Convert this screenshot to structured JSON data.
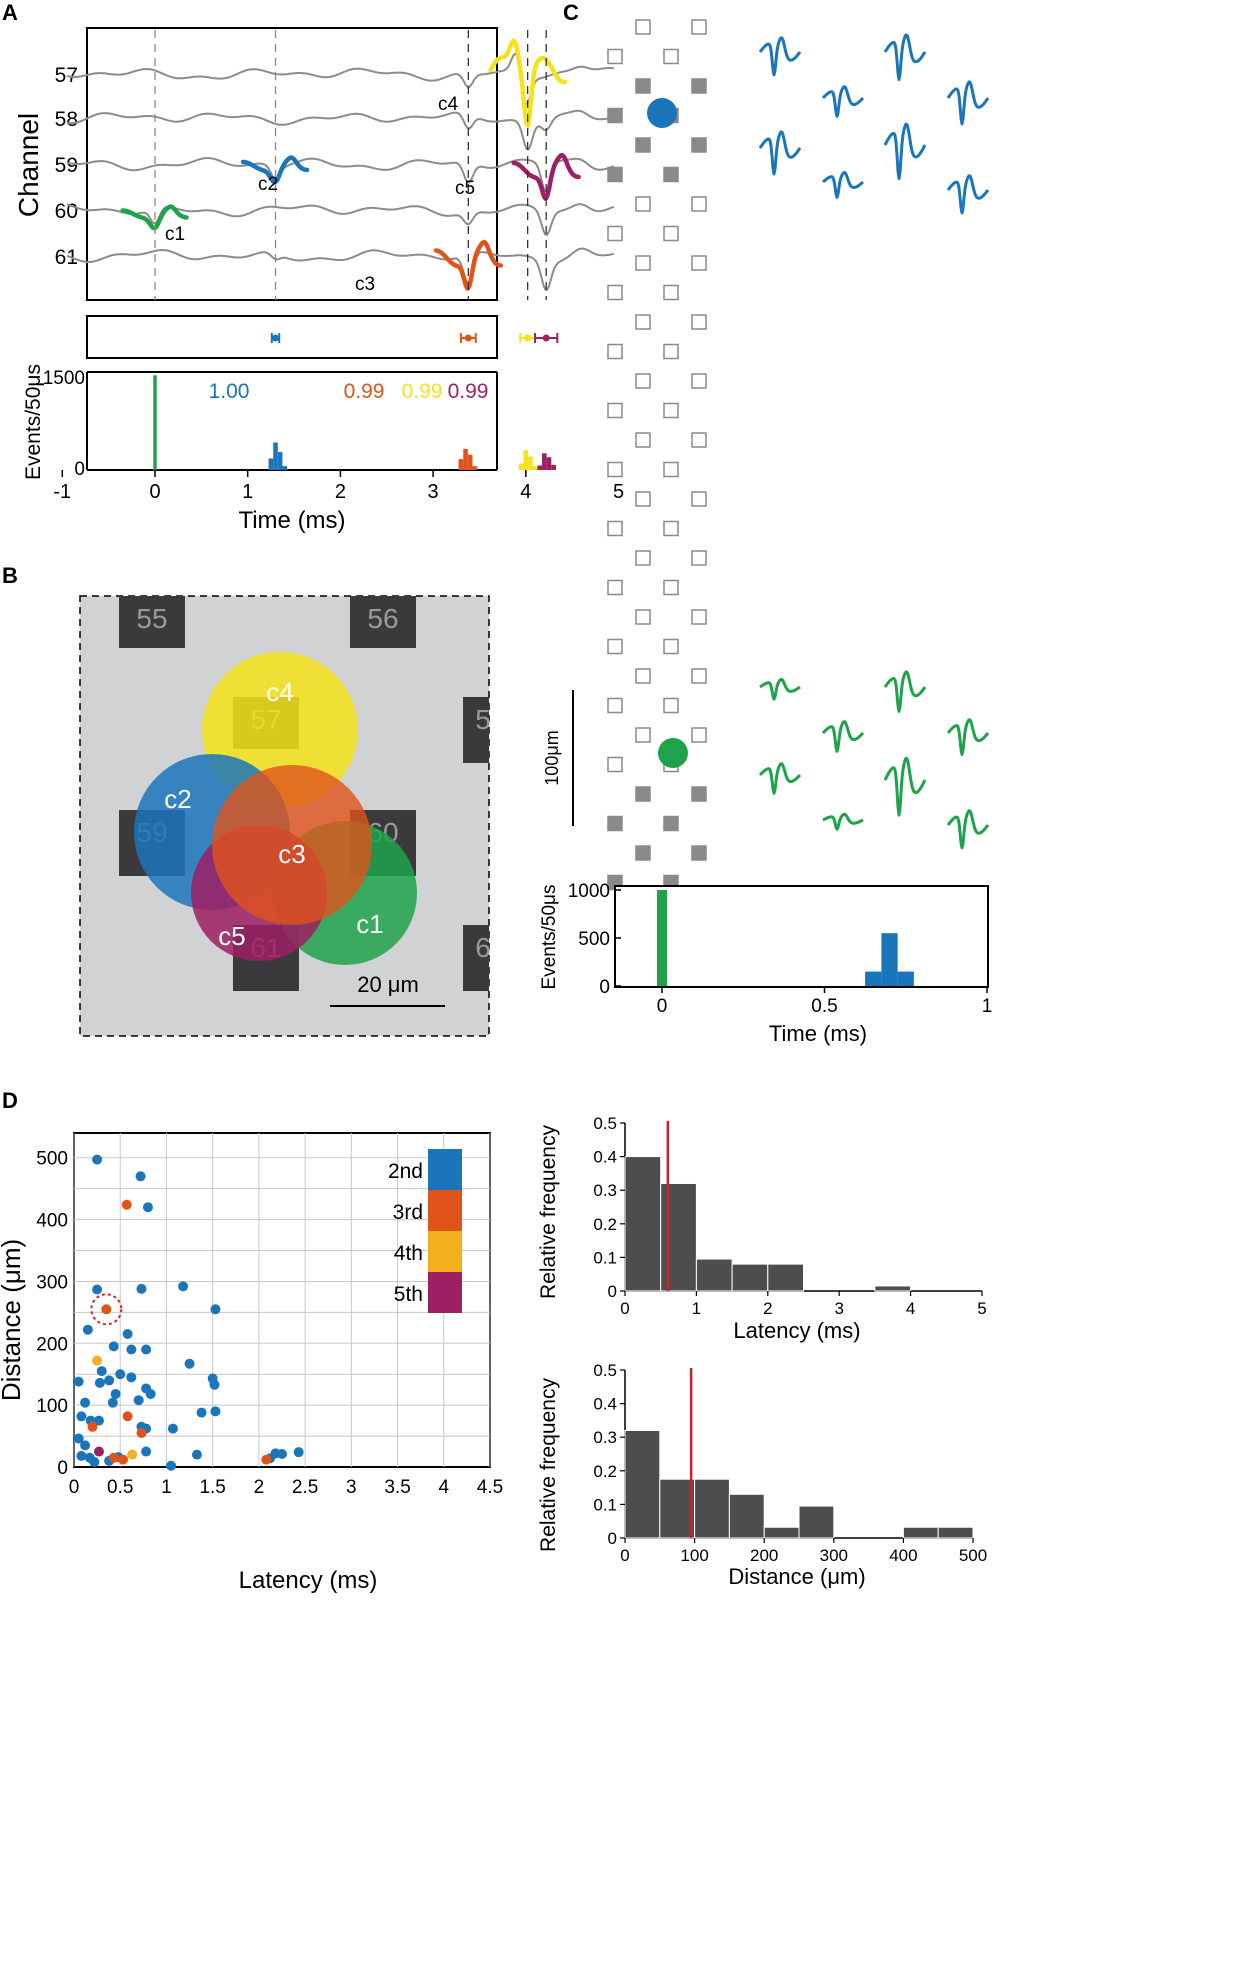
{
  "panels": {
    "A": {
      "label": "A",
      "ylabel_traces": "Channel",
      "channels": [
        "57",
        "58",
        "59",
        "60",
        "61"
      ],
      "cluster_labels": [
        "c1",
        "c2",
        "c3",
        "c4",
        "c5"
      ],
      "hist_ylabel": "Events/50μs",
      "hist_ytick_top": "1500",
      "hist_ytick_zero": "0",
      "xlabel": "Time (ms)",
      "xticks": [
        "-1",
        "0",
        "1",
        "2",
        "3",
        "4",
        "5"
      ],
      "probabilities": [
        "1.00",
        "0.99",
        "0.99",
        "0.99"
      ]
    },
    "B": {
      "label": "B",
      "electrodes": [
        "55",
        "56",
        "57",
        "5",
        "59",
        "60",
        "61",
        "6"
      ],
      "cluster_labels": [
        "c4",
        "c2",
        "c3",
        "c5",
        "c1"
      ],
      "scalebar": "20 μm"
    },
    "C": {
      "label": "C",
      "scalebar": "100μm",
      "hist_ylabel": "Events/50μs",
      "yticks": [
        "1000",
        "500",
        "0"
      ],
      "xticks": [
        "0",
        "0.5",
        "1"
      ],
      "xlabel": "Time (ms)"
    },
    "D": {
      "label": "D",
      "scatter_xlabel": "Latency (ms)",
      "scatter_ylabel": "Distance (μm)",
      "legend": [
        "2nd",
        "3rd",
        "4th",
        "5th"
      ],
      "hist_ylabel": "Relative frequency",
      "latency_xlabel": "Latency (ms)",
      "distance_xlabel": "Distance (μm)"
    }
  },
  "colors": {
    "green": "#1ea34a",
    "blue": "#1b75bb",
    "orange": "#e0541b",
    "yellow": "#f5e31a",
    "magenta": "#9e1f63",
    "legend_yellow": "#f2b01e",
    "trace_gray": "#8c8c8c",
    "hist_gray": "#4d4d4f",
    "median_red": "#c1272d"
  },
  "chart_data": [
    {
      "id": "A-histogram",
      "type": "bar",
      "xlabel": "Time (ms)",
      "ylabel": "Events/50μs",
      "xlim": [
        -1,
        5
      ],
      "ylim": [
        0,
        1500
      ],
      "series": [
        {
          "name": "c1",
          "bins": [
            [
              0.0,
              1480
            ]
          ]
        },
        {
          "name": "c2",
          "bins": [
            [
              1.25,
              180
            ],
            [
              1.3,
              430
            ],
            [
              1.35,
              280
            ],
            [
              1.4,
              60
            ]
          ]
        },
        {
          "name": "c3",
          "bins": [
            [
              3.3,
              170
            ],
            [
              3.35,
              330
            ],
            [
              3.4,
              240
            ],
            [
              3.45,
              60
            ]
          ]
        },
        {
          "name": "c4",
          "bins": [
            [
              3.95,
              100
            ],
            [
              4.0,
              310
            ],
            [
              4.05,
              210
            ],
            [
              4.1,
              60
            ]
          ]
        },
        {
          "name": "c5",
          "bins": [
            [
              4.15,
              70
            ],
            [
              4.2,
              260
            ],
            [
              4.25,
              200
            ],
            [
              4.3,
              80
            ]
          ]
        }
      ],
      "probabilities": [
        "1.00",
        "0.99",
        "0.99",
        "0.99"
      ]
    },
    {
      "id": "C-histogram",
      "type": "bar",
      "xlabel": "Time (ms)",
      "ylabel": "Events/50μs",
      "xlim": [
        -0.2,
        1.45
      ],
      "ylim": [
        0,
        1000
      ],
      "series": [
        {
          "name": "green",
          "bins": [
            [
              0.0,
              1000
            ]
          ]
        },
        {
          "name": "blue",
          "bins": [
            [
              0.65,
              150
            ],
            [
              0.7,
              550
            ],
            [
              0.75,
              150
            ]
          ]
        }
      ]
    },
    {
      "id": "D-scatter",
      "type": "scatter",
      "xlabel": "Latency (ms)",
      "ylabel": "Distance (μm)",
      "xlim": [
        0,
        4.5
      ],
      "ylim": [
        0,
        540
      ],
      "xticks": [
        0,
        0.5,
        1,
        1.5,
        2,
        2.5,
        3,
        3.5,
        4,
        4.5
      ],
      "yticks": [
        0,
        100,
        200,
        300,
        400,
        500
      ],
      "series": [
        {
          "name": "2nd",
          "points": [
            [
              0.25,
              497
            ],
            [
              0.72,
              470
            ],
            [
              0.8,
              420
            ],
            [
              0.25,
              287
            ],
            [
              0.73,
              288
            ],
            [
              1.18,
              292
            ],
            [
              1.53,
              255
            ],
            [
              0.15,
              222
            ],
            [
              0.58,
              215
            ],
            [
              0.43,
              195
            ],
            [
              0.3,
              155
            ],
            [
              0.5,
              150
            ],
            [
              0.62,
              190
            ],
            [
              0.78,
              190
            ],
            [
              0.05,
              138
            ],
            [
              0.28,
              136
            ],
            [
              0.38,
              140
            ],
            [
              0.62,
              145
            ],
            [
              0.12,
              104
            ],
            [
              0.45,
              118
            ],
            [
              0.7,
              108
            ],
            [
              0.78,
              127
            ],
            [
              0.83,
              118
            ],
            [
              1.25,
              167
            ],
            [
              1.5,
              143
            ],
            [
              1.52,
              133
            ],
            [
              0.08,
              82
            ],
            [
              0.18,
              75
            ],
            [
              0.27,
              75
            ],
            [
              0.42,
              104
            ],
            [
              0.73,
              65
            ],
            [
              0.78,
              62
            ],
            [
              1.07,
              62
            ],
            [
              1.38,
              88
            ],
            [
              1.53,
              90
            ],
            [
              0.05,
              46
            ],
            [
              0.08,
              18
            ],
            [
              0.12,
              35
            ],
            [
              0.17,
              15
            ],
            [
              0.22,
              8
            ],
            [
              0.38,
              10
            ],
            [
              0.48,
              16
            ],
            [
              0.78,
              25
            ],
            [
              1.05,
              2
            ],
            [
              1.33,
              20
            ],
            [
              2.12,
              14
            ],
            [
              2.18,
              22
            ],
            [
              2.25,
              21
            ],
            [
              2.43,
              24
            ]
          ]
        },
        {
          "name": "3rd",
          "points": [
            [
              0.57,
              424
            ],
            [
              0.35,
              255
            ],
            [
              0.2,
              65
            ],
            [
              0.58,
              82
            ],
            [
              0.73,
              55
            ],
            [
              0.43,
              15
            ],
            [
              0.53,
              12
            ],
            [
              2.08,
              12
            ],
            [
              3.88,
              296
            ]
          ]
        },
        {
          "name": "4th",
          "points": [
            [
              0.25,
              172
            ],
            [
              0.63,
              20
            ]
          ]
        },
        {
          "name": "5th",
          "points": [
            [
              0.27,
              25
            ]
          ]
        }
      ],
      "highlight": [
        0.35,
        255
      ],
      "legend_position": "top-right",
      "grid": true
    },
    {
      "id": "D-latency-hist",
      "type": "bar",
      "xlabel": "Latency (ms)",
      "ylabel": "Relative frequency",
      "xlim": [
        0,
        5
      ],
      "ylim": [
        0,
        0.5
      ],
      "bin_width": 0.5,
      "bin_starts": [
        0,
        0.5,
        1,
        1.5,
        2,
        2.5,
        3,
        3.5,
        4,
        4.5
      ],
      "values": [
        0.4,
        0.32,
        0.095,
        0.08,
        0.08,
        0,
        0,
        0.015,
        0,
        0
      ],
      "median": 0.6,
      "xticks": [
        0,
        1,
        2,
        3,
        4,
        5
      ],
      "yticks": [
        0,
        0.1,
        0.2,
        0.3,
        0.4,
        0.5
      ]
    },
    {
      "id": "D-distance-hist",
      "type": "bar",
      "xlabel": "Distance (μm)",
      "ylabel": "Relative frequency",
      "xlim": [
        0,
        500
      ],
      "ylim": [
        0,
        0.5
      ],
      "bin_width": 50,
      "bin_starts": [
        0,
        50,
        100,
        150,
        200,
        250,
        300,
        350,
        400,
        450
      ],
      "values": [
        0.32,
        0.175,
        0.175,
        0.13,
        0.032,
        0.095,
        0,
        0,
        0.032,
        0.032
      ],
      "median": 95,
      "xticks": [
        0,
        100,
        200,
        300,
        400,
        500
      ],
      "yticks": [
        0,
        0.1,
        0.2,
        0.3,
        0.4,
        0.5
      ]
    }
  ]
}
